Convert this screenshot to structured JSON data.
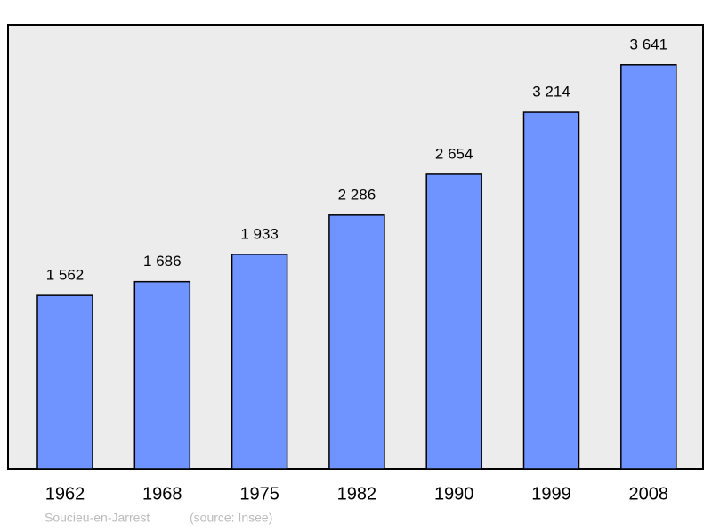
{
  "chart_data": {
    "type": "bar",
    "categories": [
      "1962",
      "1968",
      "1975",
      "1982",
      "1990",
      "1999",
      "2008"
    ],
    "values": [
      1562,
      1686,
      1933,
      2286,
      2654,
      3214,
      3641
    ],
    "value_labels": [
      "1 562",
      "1 686",
      "1 933",
      "2 286",
      "2 654",
      "3 214",
      "3 641"
    ],
    "color": "#7094ff",
    "ylim": [
      0,
      4000
    ],
    "caption": "Soucieu-en-Jarrest",
    "source": "(source: Insee)"
  }
}
